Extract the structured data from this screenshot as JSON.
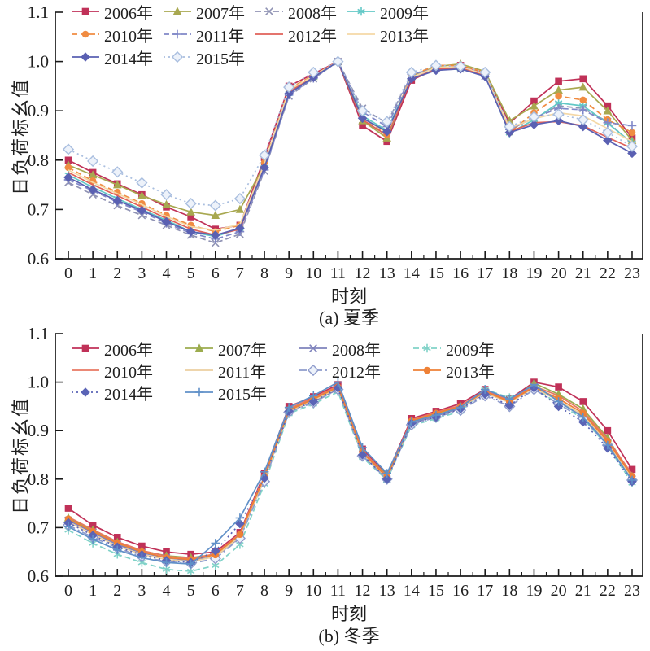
{
  "figure": {
    "background": "#ffffff",
    "axis_color": "#1a1a1a",
    "text_color": "#1f1f1f"
  },
  "chart_data": [
    {
      "type": "line",
      "caption": "(a) 夏季",
      "xlabel": "时刻",
      "ylabel": "日负荷标幺值",
      "x": [
        0,
        1,
        2,
        3,
        4,
        5,
        6,
        7,
        8,
        9,
        10,
        11,
        12,
        13,
        14,
        15,
        16,
        17,
        18,
        19,
        20,
        21,
        22,
        23
      ],
      "ylim": [
        0.6,
        1.1
      ],
      "yticks": [
        "0.6",
        "0.7",
        "0.8",
        "0.9",
        "1.0",
        "1.1"
      ],
      "grid": false,
      "legend_position": "top-left-inside",
      "legend_rows": [
        [
          0,
          1,
          2,
          3
        ],
        [
          4,
          5,
          6,
          7
        ],
        [
          8,
          9
        ]
      ],
      "series": [
        {
          "name": "2006年",
          "color": "#c03158",
          "marker": "square",
          "line": "solid",
          "values": [
            0.8,
            0.775,
            0.752,
            0.73,
            0.705,
            0.685,
            0.66,
            0.668,
            0.805,
            0.95,
            0.975,
            1.0,
            0.87,
            0.838,
            0.962,
            0.985,
            0.992,
            0.975,
            0.875,
            0.92,
            0.96,
            0.965,
            0.91,
            0.845
          ]
        },
        {
          "name": "2007年",
          "color": "#a8a850",
          "marker": "triangle",
          "line": "solid",
          "values": [
            0.79,
            0.77,
            0.75,
            0.728,
            0.71,
            0.695,
            0.688,
            0.7,
            0.79,
            0.94,
            0.97,
            1.0,
            0.88,
            0.845,
            0.97,
            0.99,
            0.995,
            0.98,
            0.88,
            0.91,
            0.942,
            0.948,
            0.9,
            0.84
          ]
        },
        {
          "name": "2008年",
          "color": "#9093b4",
          "marker": "x",
          "line": "dashed",
          "values": [
            0.755,
            0.73,
            0.708,
            0.688,
            0.668,
            0.648,
            0.632,
            0.65,
            0.778,
            0.93,
            0.965,
            1.0,
            0.905,
            0.875,
            0.975,
            0.985,
            0.985,
            0.97,
            0.862,
            0.885,
            0.91,
            0.905,
            0.878,
            0.832
          ]
        },
        {
          "name": "2009年",
          "color": "#62c8c6",
          "marker": "asterisk",
          "line": "solid",
          "values": [
            0.77,
            0.745,
            0.722,
            0.7,
            0.678,
            0.655,
            0.645,
            0.662,
            0.785,
            0.935,
            0.968,
            1.0,
            0.89,
            0.86,
            0.968,
            0.988,
            0.986,
            0.972,
            0.855,
            0.882,
            0.916,
            0.91,
            0.875,
            0.835
          ]
        },
        {
          "name": "2010年",
          "color": "#f08c42",
          "marker": "circle",
          "line": "dashed",
          "values": [
            0.785,
            0.758,
            0.735,
            0.712,
            0.688,
            0.668,
            0.655,
            0.668,
            0.795,
            0.945,
            0.972,
            1.0,
            0.885,
            0.852,
            0.972,
            0.992,
            0.992,
            0.978,
            0.856,
            0.896,
            0.93,
            0.922,
            0.882,
            0.856
          ]
        },
        {
          "name": "2011年",
          "color": "#8088c8",
          "marker": "plus",
          "line": "dashed",
          "values": [
            0.76,
            0.738,
            0.715,
            0.695,
            0.672,
            0.652,
            0.64,
            0.655,
            0.78,
            0.932,
            0.966,
            1.0,
            0.898,
            0.868,
            0.974,
            0.986,
            0.988,
            0.975,
            0.862,
            0.886,
            0.905,
            0.902,
            0.876,
            0.87
          ]
        },
        {
          "name": "2012年",
          "color": "#e06058",
          "marker": "none",
          "line": "solid",
          "values": [
            0.775,
            0.75,
            0.728,
            0.705,
            0.682,
            0.66,
            0.648,
            0.66,
            0.788,
            0.938,
            0.97,
            1.0,
            0.882,
            0.85,
            0.965,
            0.984,
            0.988,
            0.972,
            0.858,
            0.876,
            0.878,
            0.87,
            0.846,
            0.824
          ]
        },
        {
          "name": "2013年",
          "color": "#f4d8a6",
          "marker": "none",
          "line": "solid",
          "values": [
            0.78,
            0.755,
            0.732,
            0.71,
            0.686,
            0.665,
            0.658,
            0.67,
            0.792,
            0.942,
            0.971,
            1.0,
            0.886,
            0.855,
            0.968,
            0.988,
            0.99,
            0.974,
            0.865,
            0.884,
            0.896,
            0.89,
            0.864,
            0.838
          ]
        },
        {
          "name": "2014年",
          "color": "#5a60b2",
          "marker": "diamond",
          "line": "solid",
          "values": [
            0.765,
            0.74,
            0.718,
            0.698,
            0.675,
            0.655,
            0.648,
            0.662,
            0.785,
            0.935,
            0.968,
            1.0,
            0.885,
            0.858,
            0.965,
            0.982,
            0.985,
            0.97,
            0.856,
            0.872,
            0.88,
            0.868,
            0.84,
            0.814
          ]
        },
        {
          "name": "2015年",
          "color": "#a9bedf",
          "marker": "diamond-open",
          "line": "dotted",
          "values": [
            0.822,
            0.798,
            0.776,
            0.754,
            0.73,
            0.712,
            0.708,
            0.722,
            0.81,
            0.948,
            0.978,
            1.0,
            0.9,
            0.878,
            0.978,
            0.992,
            0.99,
            0.978,
            0.868,
            0.888,
            0.893,
            0.882,
            0.856,
            0.828
          ]
        }
      ]
    },
    {
      "type": "line",
      "caption": "(b) 冬季",
      "xlabel": "时刻",
      "ylabel": "日负荷标幺值",
      "x": [
        0,
        1,
        2,
        3,
        4,
        5,
        6,
        7,
        8,
        9,
        10,
        11,
        12,
        13,
        14,
        15,
        16,
        17,
        18,
        19,
        20,
        21,
        22,
        23
      ],
      "ylim": [
        0.6,
        1.1
      ],
      "yticks": [
        "0.6",
        "0.7",
        "0.8",
        "0.9",
        "1.0",
        "1.1"
      ],
      "grid": false,
      "legend_position": "top-left-inside",
      "legend_rows": [
        [
          0,
          1,
          2,
          3
        ],
        [
          4,
          5,
          6,
          7
        ],
        [
          8,
          9
        ]
      ],
      "series": [
        {
          "name": "2006年",
          "color": "#c03158",
          "marker": "square",
          "line": "solid",
          "values": [
            0.74,
            0.705,
            0.68,
            0.662,
            0.65,
            0.645,
            0.65,
            0.69,
            0.812,
            0.95,
            0.97,
            0.995,
            0.862,
            0.81,
            0.925,
            0.94,
            0.956,
            0.985,
            0.965,
            1.0,
            0.99,
            0.96,
            0.9,
            0.82
          ]
        },
        {
          "name": "2007年",
          "color": "#9cac4e",
          "marker": "triangle",
          "line": "solid",
          "values": [
            0.72,
            0.695,
            0.67,
            0.652,
            0.642,
            0.638,
            0.645,
            0.685,
            0.805,
            0.945,
            0.965,
            0.99,
            0.856,
            0.808,
            0.92,
            0.935,
            0.95,
            0.98,
            0.96,
            0.998,
            0.975,
            0.945,
            0.885,
            0.806
          ]
        },
        {
          "name": "2008年",
          "color": "#7e82bc",
          "marker": "x",
          "line": "solid",
          "values": [
            0.715,
            0.69,
            0.665,
            0.648,
            0.638,
            0.632,
            0.64,
            0.68,
            0.8,
            0.94,
            0.96,
            0.985,
            0.85,
            0.8,
            0.915,
            0.93,
            0.946,
            0.978,
            0.958,
            0.99,
            0.962,
            0.93,
            0.875,
            0.8
          ]
        },
        {
          "name": "2009年",
          "color": "#80d2c8",
          "marker": "asterisk",
          "line": "dashed",
          "values": [
            0.695,
            0.668,
            0.645,
            0.628,
            0.614,
            0.61,
            0.622,
            0.665,
            0.79,
            0.935,
            0.955,
            0.98,
            0.845,
            0.798,
            0.91,
            0.925,
            0.94,
            0.985,
            0.968,
            0.988,
            0.955,
            0.925,
            0.868,
            0.792
          ]
        },
        {
          "name": "2010年",
          "color": "#e87862",
          "marker": "none",
          "line": "solid",
          "values": [
            0.722,
            0.696,
            0.671,
            0.653,
            0.641,
            0.636,
            0.646,
            0.688,
            0.808,
            0.945,
            0.968,
            0.992,
            0.858,
            0.806,
            0.922,
            0.938,
            0.952,
            0.982,
            0.962,
            0.992,
            0.972,
            0.94,
            0.882,
            0.81
          ]
        },
        {
          "name": "2011年",
          "color": "#eccfa0",
          "marker": "none",
          "line": "solid",
          "values": [
            0.712,
            0.686,
            0.662,
            0.645,
            0.634,
            0.63,
            0.64,
            0.682,
            0.8,
            0.94,
            0.962,
            0.988,
            0.852,
            0.802,
            0.918,
            0.932,
            0.948,
            0.978,
            0.958,
            0.988,
            0.962,
            0.932,
            0.876,
            0.802
          ]
        },
        {
          "name": "2012年",
          "color": "#8f9ccc",
          "marker": "diamond-open",
          "line": "dashdot",
          "values": [
            0.705,
            0.68,
            0.658,
            0.64,
            0.63,
            0.626,
            0.636,
            0.678,
            0.795,
            0.938,
            0.958,
            0.985,
            0.848,
            0.8,
            0.912,
            0.928,
            0.942,
            0.972,
            0.95,
            0.985,
            0.955,
            0.925,
            0.87,
            0.798
          ]
        },
        {
          "name": "2013年",
          "color": "#ee8136",
          "marker": "circle",
          "line": "solid",
          "values": [
            0.718,
            0.692,
            0.668,
            0.65,
            0.638,
            0.634,
            0.644,
            0.686,
            0.805,
            0.942,
            0.965,
            0.99,
            0.855,
            0.804,
            0.92,
            0.936,
            0.95,
            0.98,
            0.96,
            0.99,
            0.966,
            0.936,
            0.878,
            0.806
          ]
        },
        {
          "name": "2014年",
          "color": "#5a64b6",
          "marker": "diamond",
          "line": "dotted",
          "values": [
            0.71,
            0.684,
            0.66,
            0.644,
            0.632,
            0.628,
            0.652,
            0.708,
            0.802,
            0.94,
            0.96,
            0.988,
            0.85,
            0.8,
            0.915,
            0.928,
            0.945,
            0.975,
            0.952,
            0.988,
            0.95,
            0.918,
            0.864,
            0.795
          ]
        },
        {
          "name": "2015年",
          "color": "#6090c8",
          "marker": "plus",
          "line": "solid",
          "values": [
            0.702,
            0.676,
            0.654,
            0.638,
            0.628,
            0.625,
            0.668,
            0.72,
            0.815,
            0.948,
            0.972,
            1.0,
            0.865,
            0.812,
            0.918,
            0.932,
            0.948,
            0.985,
            0.965,
            0.995,
            0.96,
            0.928,
            0.87,
            0.798
          ]
        }
      ]
    }
  ]
}
